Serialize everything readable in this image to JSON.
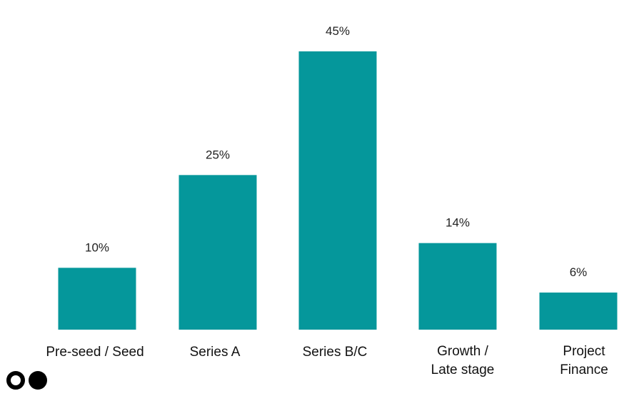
{
  "chart_data": {
    "type": "bar",
    "categories": [
      [
        "Pre-seed / Seed"
      ],
      [
        "Series A"
      ],
      [
        "Series B/C"
      ],
      [
        "Growth /",
        "Late stage"
      ],
      [
        "Project",
        "Finance"
      ]
    ],
    "values": [
      10,
      25,
      45,
      14,
      6
    ],
    "value_labels": [
      "10%",
      "25%",
      "45%",
      "14%",
      "6%"
    ],
    "title": "",
    "xlabel": "",
    "ylabel": "",
    "ylim": [
      0,
      45
    ],
    "grid": false,
    "legend": "none",
    "bar_color": "#05979B"
  },
  "logo": {
    "name": "brand-logo-icon"
  }
}
